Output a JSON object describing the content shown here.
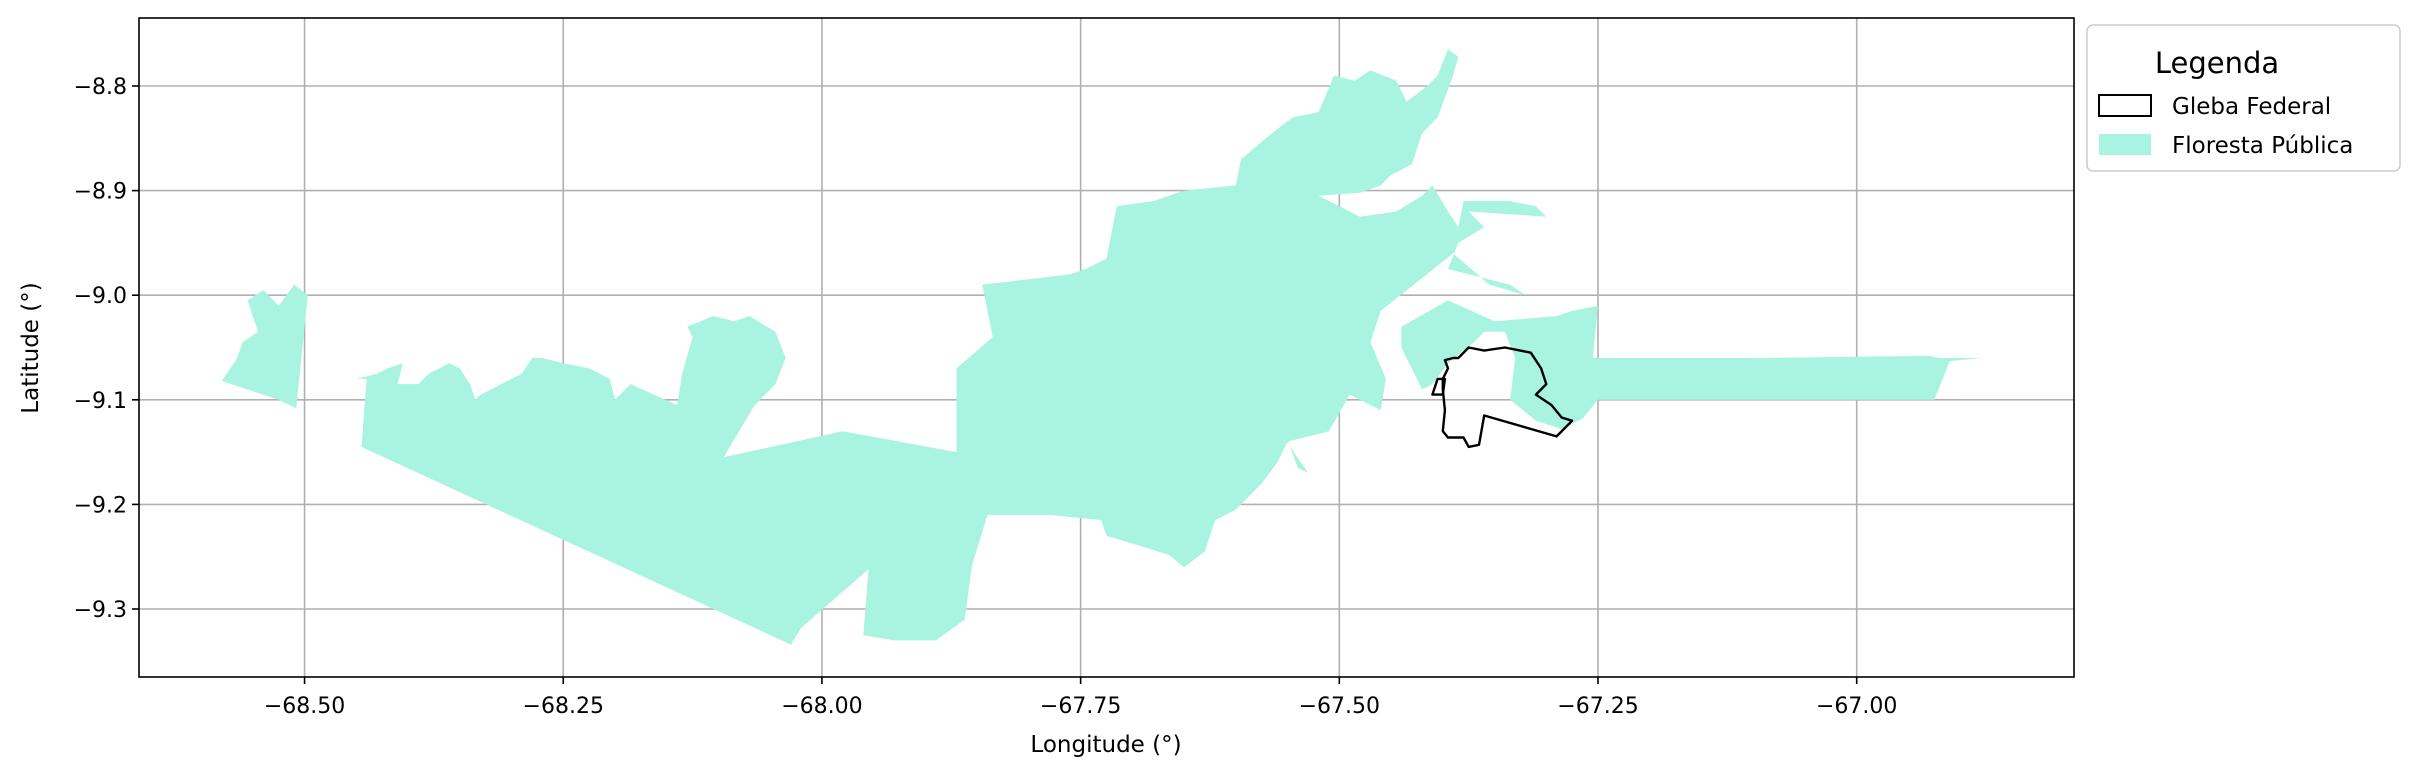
{
  "chart_data": {
    "type": "map",
    "xlabel": "Longitude (°)",
    "ylabel": "Latitude (°)",
    "xlim": [
      -68.66,
      -66.79
    ],
    "ylim": [
      -9.365,
      -8.735
    ],
    "x_ticks": [
      -68.5,
      -68.25,
      -68.0,
      -67.75,
      -67.5,
      -67.25,
      -67.0
    ],
    "x_tick_labels": [
      "−68.50",
      "−68.25",
      "−68.00",
      "−67.75",
      "−67.50",
      "−67.25",
      "−67.00"
    ],
    "y_ticks": [
      -8.8,
      -8.9,
      -9.0,
      -9.1,
      -9.2,
      -9.3
    ],
    "y_tick_labels": [
      "−8.8",
      "−8.9",
      "−9.0",
      "−9.1",
      "−9.2",
      "−9.3"
    ],
    "grid": true,
    "legend": {
      "title": "Legenda",
      "placement": "outside-top-right",
      "entries": [
        {
          "label": "Gleba Federal",
          "style": "outline",
          "color": "#000000"
        },
        {
          "label": "Floresta Pública",
          "style": "fill",
          "color": "#a8f4e0"
        }
      ]
    },
    "layers": [
      {
        "name": "Floresta Pública",
        "color": "#a8f4e0",
        "rings": [
          [
            [
              -68.58,
              -9.082
            ],
            [
              -68.565,
              -9.06
            ],
            [
              -68.56,
              -9.045
            ],
            [
              -68.545,
              -9.035
            ],
            [
              -68.555,
              -9.005
            ],
            [
              -68.54,
              -8.995
            ],
            [
              -68.525,
              -9.01
            ],
            [
              -68.51,
              -8.99
            ],
            [
              -68.497,
              -9.0
            ],
            [
              -68.508,
              -9.108
            ],
            [
              -68.525,
              -9.1
            ],
            [
              -68.58,
              -9.082
            ]
          ],
          [
            [
              -68.445,
              -9.145
            ],
            [
              -68.44,
              -9.08
            ],
            [
              -68.45,
              -9.08
            ],
            [
              -68.43,
              -9.075
            ],
            [
              -68.42,
              -9.07
            ],
            [
              -68.405,
              -9.065
            ],
            [
              -68.41,
              -9.085
            ],
            [
              -68.39,
              -9.085
            ],
            [
              -68.38,
              -9.075
            ],
            [
              -68.36,
              -9.065
            ],
            [
              -68.35,
              -9.07
            ],
            [
              -68.34,
              -9.085
            ],
            [
              -68.335,
              -9.1
            ],
            [
              -68.33,
              -9.095
            ],
            [
              -68.31,
              -9.085
            ],
            [
              -68.29,
              -9.075
            ],
            [
              -68.28,
              -9.06
            ],
            [
              -68.27,
              -9.06
            ],
            [
              -68.25,
              -9.065
            ],
            [
              -68.225,
              -9.07
            ],
            [
              -68.205,
              -9.08
            ],
            [
              -68.2,
              -9.1
            ],
            [
              -68.185,
              -9.085
            ],
            [
              -68.14,
              -9.105
            ],
            [
              -68.135,
              -9.075
            ],
            [
              -68.125,
              -9.04
            ],
            [
              -68.13,
              -9.03
            ],
            [
              -68.105,
              -9.02
            ],
            [
              -68.085,
              -9.025
            ],
            [
              -68.07,
              -9.02
            ],
            [
              -68.045,
              -9.035
            ],
            [
              -68.035,
              -9.06
            ],
            [
              -68.045,
              -9.085
            ],
            [
              -68.065,
              -9.105
            ],
            [
              -68.095,
              -9.155
            ],
            [
              -67.98,
              -9.13
            ],
            [
              -67.87,
              -9.15
            ],
            [
              -67.87,
              -9.07
            ],
            [
              -67.835,
              -9.04
            ],
            [
              -67.845,
              -8.99
            ],
            [
              -67.76,
              -8.98
            ],
            [
              -67.745,
              -8.975
            ],
            [
              -67.725,
              -8.965
            ],
            [
              -67.715,
              -8.915
            ],
            [
              -67.68,
              -8.91
            ],
            [
              -67.65,
              -8.9
            ],
            [
              -67.6,
              -8.895
            ],
            [
              -67.595,
              -8.87
            ],
            [
              -67.565,
              -8.845
            ],
            [
              -67.545,
              -8.83
            ],
            [
              -67.52,
              -8.825
            ],
            [
              -67.505,
              -8.79
            ],
            [
              -67.485,
              -8.795
            ],
            [
              -67.47,
              -8.785
            ],
            [
              -67.445,
              -8.795
            ],
            [
              -67.435,
              -8.815
            ],
            [
              -67.415,
              -8.8
            ],
            [
              -67.405,
              -8.79
            ],
            [
              -67.395,
              -8.765
            ],
            [
              -67.385,
              -8.772
            ],
            [
              -67.39,
              -8.79
            ],
            [
              -67.405,
              -8.83
            ],
            [
              -67.42,
              -8.845
            ],
            [
              -67.43,
              -8.875
            ],
            [
              -67.45,
              -8.885
            ],
            [
              -67.46,
              -8.895
            ],
            [
              -67.48,
              -8.902
            ],
            [
              -67.52,
              -8.905
            ],
            [
              -67.5,
              -8.915
            ],
            [
              -67.48,
              -8.925
            ],
            [
              -67.445,
              -8.92
            ],
            [
              -67.42,
              -8.905
            ],
            [
              -67.41,
              -8.895
            ],
            [
              -67.395,
              -8.92
            ],
            [
              -67.385,
              -8.935
            ],
            [
              -67.38,
              -8.91
            ],
            [
              -67.335,
              -8.91
            ],
            [
              -67.31,
              -8.915
            ],
            [
              -67.3,
              -8.925
            ],
            [
              -67.375,
              -8.92
            ],
            [
              -67.36,
              -8.935
            ],
            [
              -67.385,
              -8.95
            ],
            [
              -67.395,
              -8.975
            ],
            [
              -67.355,
              -8.985
            ],
            [
              -67.335,
              -8.99
            ],
            [
              -67.32,
              -9.0
            ],
            [
              -67.355,
              -8.99
            ],
            [
              -67.39,
              -8.96
            ],
            [
              -67.46,
              -9.015
            ],
            [
              -67.47,
              -9.045
            ],
            [
              -67.455,
              -9.08
            ],
            [
              -67.46,
              -9.11
            ],
            [
              -67.49,
              -9.095
            ],
            [
              -67.51,
              -9.13
            ],
            [
              -67.55,
              -9.14
            ],
            [
              -67.56,
              -9.16
            ],
            [
              -67.575,
              -9.18
            ],
            [
              -67.6,
              -9.205
            ],
            [
              -67.62,
              -9.215
            ],
            [
              -67.63,
              -9.245
            ],
            [
              -67.65,
              -9.26
            ],
            [
              -67.665,
              -9.248
            ],
            [
              -67.725,
              -9.23
            ],
            [
              -67.73,
              -9.215
            ],
            [
              -67.78,
              -9.21
            ],
            [
              -67.84,
              -9.21
            ],
            [
              -67.855,
              -9.258
            ],
            [
              -67.862,
              -9.31
            ],
            [
              -67.89,
              -9.33
            ],
            [
              -67.93,
              -9.33
            ],
            [
              -67.96,
              -9.325
            ],
            [
              -67.955,
              -9.262
            ],
            [
              -68.02,
              -9.318
            ],
            [
              -68.03,
              -9.334
            ],
            [
              -68.445,
              -9.145
            ]
          ],
          [
            [
              -67.53,
              -9.17
            ],
            [
              -67.565,
              -9.12
            ],
            [
              -67.59,
              -9.095
            ],
            [
              -67.58,
              -9.088
            ],
            [
              -67.565,
              -9.1
            ],
            [
              -67.54,
              -9.165
            ]
          ],
          [
            [
              -67.42,
              -9.09
            ],
            [
              -67.44,
              -9.05
            ],
            [
              -67.44,
              -9.03
            ],
            [
              -67.395,
              -9.005
            ],
            [
              -67.35,
              -9.025
            ],
            [
              -67.29,
              -9.02
            ],
            [
              -67.275,
              -9.015
            ],
            [
              -67.25,
              -9.01
            ],
            [
              -67.255,
              -9.06
            ],
            [
              -67.1,
              -9.06
            ],
            [
              -66.93,
              -9.058
            ],
            [
              -66.92,
              -9.06
            ],
            [
              -66.88,
              -9.06
            ],
            [
              -66.91,
              -9.063
            ],
            [
              -66.915,
              -9.075
            ],
            [
              -66.925,
              -9.1
            ],
            [
              -67.25,
              -9.1
            ],
            [
              -67.265,
              -9.118
            ],
            [
              -67.285,
              -9.128
            ],
            [
              -67.31,
              -9.12
            ],
            [
              -67.335,
              -9.1
            ],
            [
              -67.33,
              -9.06
            ],
            [
              -67.34,
              -9.035
            ],
            [
              -67.36,
              -9.035
            ],
            [
              -67.37,
              -9.045
            ],
            [
              -67.395,
              -9.065
            ],
            [
              -67.41,
              -9.085
            ],
            [
              -67.42,
              -9.09
            ]
          ]
        ]
      },
      {
        "name": "Gleba Federal",
        "color": "#000000",
        "rings": [
          [
            [
              -67.4,
              -9.08
            ],
            [
              -67.395,
              -9.07
            ],
            [
              -67.398,
              -9.062
            ],
            [
              -67.39,
              -9.06
            ],
            [
              -67.385,
              -9.06
            ],
            [
              -67.375,
              -9.05
            ],
            [
              -67.36,
              -9.053
            ],
            [
              -67.34,
              -9.05
            ],
            [
              -67.315,
              -9.055
            ],
            [
              -67.305,
              -9.07
            ],
            [
              -67.3,
              -9.085
            ],
            [
              -67.31,
              -9.095
            ],
            [
              -67.295,
              -9.105
            ],
            [
              -67.285,
              -9.117
            ],
            [
              -67.275,
              -9.12
            ],
            [
              -67.29,
              -9.135
            ],
            [
              -67.36,
              -9.115
            ],
            [
              -67.365,
              -9.143
            ],
            [
              -67.375,
              -9.145
            ],
            [
              -67.38,
              -9.136
            ],
            [
              -67.395,
              -9.136
            ],
            [
              -67.4,
              -9.13
            ],
            [
              -67.398,
              -9.11
            ],
            [
              -67.4,
              -9.09
            ],
            [
              -67.4,
              -9.08
            ]
          ],
          [
            [
              -67.41,
              -9.095
            ],
            [
              -67.405,
              -9.08
            ],
            [
              -67.398,
              -9.08
            ],
            [
              -67.4,
              -9.095
            ],
            [
              -67.41,
              -9.095
            ]
          ]
        ]
      }
    ]
  }
}
